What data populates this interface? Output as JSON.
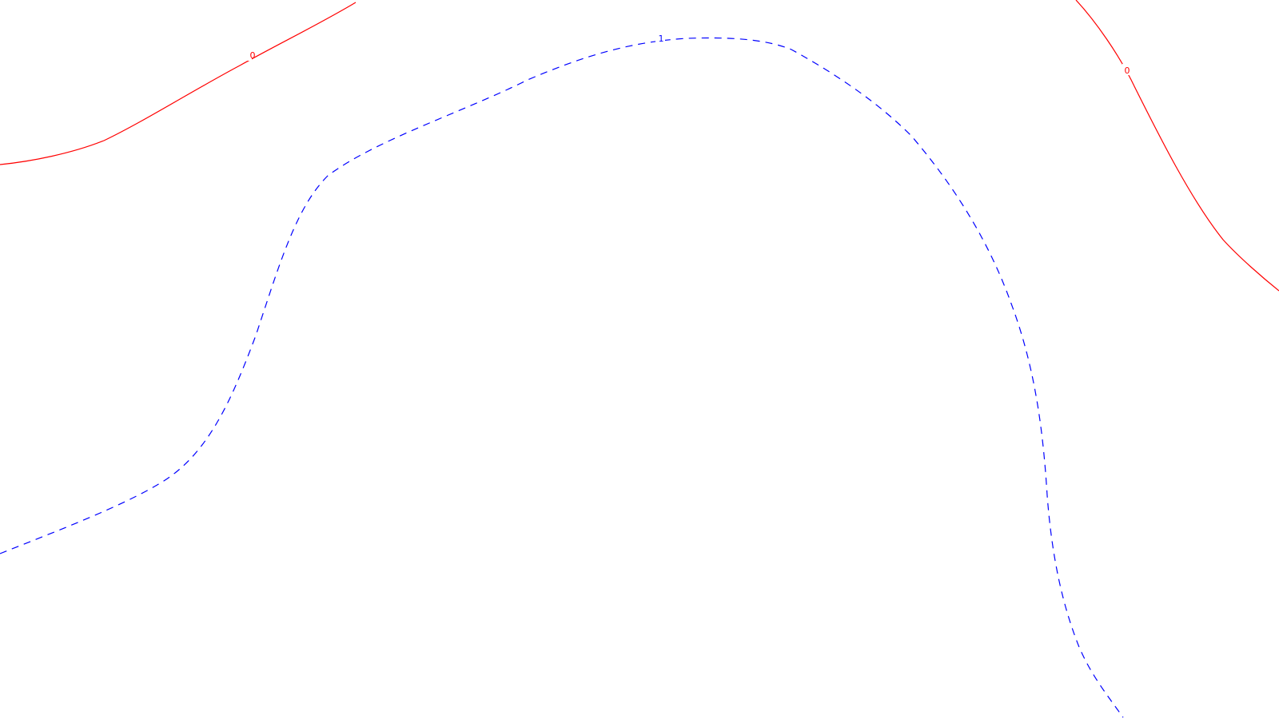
{
  "contours": [
    {
      "id": "contour-zero-left",
      "level": "0",
      "color": "#ff0000",
      "style": "solid"
    },
    {
      "id": "contour-zero-right",
      "level": "0",
      "color": "#ff0000",
      "style": "solid"
    },
    {
      "id": "contour-one",
      "level": "1",
      "color": "#0000ff",
      "style": "dashed"
    }
  ],
  "background": "#ffffff"
}
